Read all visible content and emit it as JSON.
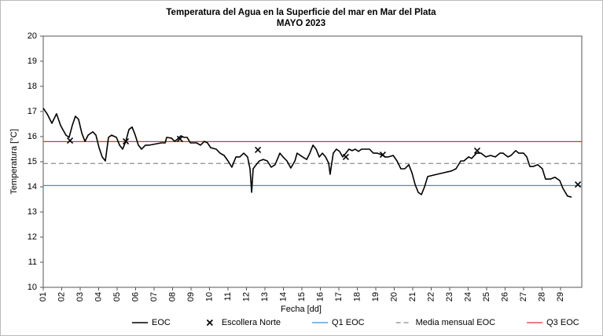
{
  "chart_data": {
    "type": "line",
    "title": "Temperatura del Agua  en la Superficie del mar en Mar del Plata",
    "subtitle": "MAYO  2023",
    "xlabel": "Fecha [dd]",
    "ylabel": "Temperatura [°C]",
    "xlim": [
      1,
      30.15
    ],
    "ylim": [
      10,
      20
    ],
    "yticks": [
      10,
      11,
      12,
      13,
      14,
      15,
      16,
      17,
      18,
      19,
      20
    ],
    "xticks": [
      {
        "value": 1,
        "label": "01"
      },
      {
        "value": 2,
        "label": "02"
      },
      {
        "value": 3,
        "label": "03"
      },
      {
        "value": 4,
        "label": "04"
      },
      {
        "value": 5,
        "label": "05"
      },
      {
        "value": 6,
        "label": "06"
      },
      {
        "value": 7,
        "label": "07"
      },
      {
        "value": 8,
        "label": "08"
      },
      {
        "value": 9,
        "label": "09"
      },
      10,
      11,
      12,
      13,
      14,
      15,
      16,
      17,
      18,
      19,
      20,
      21,
      22,
      23,
      24,
      25,
      26,
      27,
      28,
      29
    ],
    "series": [
      {
        "name": "EOC",
        "color": "#000000",
        "style": "line",
        "x": [
          1,
          1.21,
          1.47,
          1.72,
          1.94,
          2.06,
          2.23,
          2.4,
          2.57,
          2.74,
          2.91,
          3.09,
          3.26,
          3.43,
          3.68,
          3.85,
          4.02,
          4.19,
          4.36,
          4.53,
          4.7,
          4.96,
          5.13,
          5.3,
          5.47,
          5.64,
          5.81,
          5.98,
          6.15,
          6.32,
          6.53,
          6.74,
          6.96,
          7.17,
          7.38,
          7.6,
          7.68,
          7.94,
          8.11,
          8.28,
          8.45,
          8.62,
          8.79,
          8.96,
          9.13,
          9.3,
          9.51,
          9.72,
          9.89,
          10.06,
          10.36,
          10.57,
          10.79,
          11,
          11.21,
          11.43,
          11.64,
          11.85,
          12.06,
          12.19,
          12.28,
          12.36,
          12.53,
          12.7,
          12.91,
          13.13,
          13.34,
          13.55,
          13.81,
          13.98,
          14.19,
          14.4,
          14.62,
          14.74,
          15.04,
          15.26,
          15.43,
          15.6,
          15.77,
          15.94,
          16.11,
          16.28,
          16.45,
          16.53,
          16.7,
          16.87,
          17.04,
          17.21,
          17.38,
          17.55,
          17.72,
          17.89,
          18.06,
          18.23,
          18.45,
          18.66,
          18.87,
          19.09,
          19.3,
          19.51,
          19.68,
          19.94,
          20.15,
          20.36,
          20.57,
          20.79,
          20.96,
          21.13,
          21.3,
          21.47,
          21.64,
          21.81,
          21.98,
          22.32,
          22.66,
          23.09,
          23.34,
          23.6,
          23.77,
          24.02,
          24.19,
          24.45,
          24.7,
          24.96,
          25.21,
          25.47,
          25.72,
          25.89,
          26.15,
          26.32,
          26.57,
          26.74,
          27,
          27.17,
          27.34,
          27.51,
          27.77,
          28.02,
          28.19,
          28.45,
          28.7,
          28.96,
          29.13,
          29.38,
          29.6
        ],
        "values": [
          17.13,
          16.91,
          16.53,
          16.91,
          16.44,
          16.28,
          16.06,
          15.97,
          16.44,
          16.81,
          16.69,
          16.13,
          15.81,
          16.06,
          16.19,
          16.06,
          15.56,
          15.19,
          15.03,
          15.97,
          16.06,
          15.97,
          15.66,
          15.5,
          15.81,
          16.28,
          16.38,
          16.06,
          15.66,
          15.5,
          15.66,
          15.66,
          15.69,
          15.72,
          15.75,
          15.75,
          15.97,
          15.94,
          15.81,
          15.91,
          16.03,
          15.97,
          15.97,
          15.75,
          15.75,
          15.75,
          15.66,
          15.81,
          15.75,
          15.56,
          15.5,
          15.34,
          15.25,
          15.03,
          14.78,
          15.19,
          15.19,
          15.34,
          15.19,
          14.72,
          13.78,
          14.72,
          14.88,
          15.03,
          15.09,
          15.03,
          14.78,
          14.88,
          15.34,
          15.19,
          15.03,
          14.75,
          15.03,
          15.34,
          15.19,
          15.09,
          15.34,
          15.66,
          15.5,
          15.19,
          15.34,
          15.19,
          14.94,
          14.5,
          15.34,
          15.5,
          15.41,
          15.19,
          15.34,
          15.5,
          15.44,
          15.5,
          15.41,
          15.5,
          15.5,
          15.5,
          15.34,
          15.34,
          15.28,
          15.19,
          15.19,
          15.25,
          15.03,
          14.72,
          14.72,
          14.88,
          14.56,
          14.09,
          13.78,
          13.69,
          14.0,
          14.41,
          14.44,
          14.5,
          14.56,
          14.63,
          14.72,
          15.03,
          15.03,
          15.19,
          15.13,
          15.34,
          15.34,
          15.19,
          15.25,
          15.19,
          15.34,
          15.34,
          15.19,
          15.25,
          15.44,
          15.34,
          15.34,
          15.19,
          14.81,
          14.81,
          14.88,
          14.72,
          14.31,
          14.31,
          14.38,
          14.25,
          13.94,
          13.63,
          13.59
        ]
      },
      {
        "name": "Escollera Norte",
        "color": "#000000",
        "style": "marker",
        "x": [
          2.45,
          5.47,
          8.4,
          12.62,
          17.38,
          19.38,
          24.49,
          29.94
        ],
        "values": [
          15.84,
          15.81,
          15.91,
          15.47,
          15.19,
          15.28,
          15.44,
          14.09
        ]
      }
    ],
    "reference_lines": [
      {
        "name": "Q1 EOC",
        "value": 14.05,
        "color": "#3a8fd6",
        "dash": false
      },
      {
        "name": "Media mensual EOC",
        "value": 14.93,
        "color": "#8c8c8c",
        "dash": true
      },
      {
        "name": "Q3  EOC",
        "value": 15.8,
        "color": "#e03030",
        "dash": false
      }
    ]
  }
}
